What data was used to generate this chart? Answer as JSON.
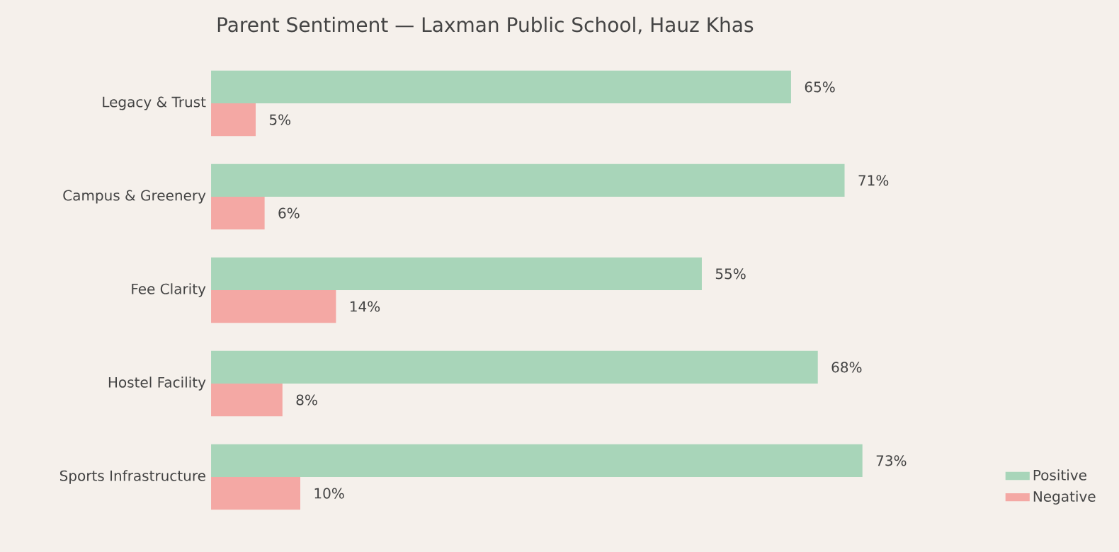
{
  "chart_data": {
    "type": "bar",
    "orientation": "horizontal",
    "title": "Parent Sentiment — Laxman Public School, Hauz Khas",
    "categories": [
      "Legacy & Trust",
      "Campus & Greenery",
      "Fee Clarity",
      "Hostel Facility",
      "Sports Infrastructure"
    ],
    "series": [
      {
        "name": "Positive",
        "color": "#a8d5b9",
        "values": [
          65,
          71,
          55,
          68,
          73
        ],
        "value_labels": [
          "65%",
          "71%",
          "55%",
          "68%",
          "73%"
        ]
      },
      {
        "name": "Negative",
        "color": "#f4a8a4",
        "values": [
          5,
          6,
          14,
          8,
          10
        ],
        "value_labels": [
          "5%",
          "6%",
          "14%",
          "8%",
          "10%"
        ]
      }
    ],
    "tick_labels": "y",
    "legend": "bottom right"
  }
}
